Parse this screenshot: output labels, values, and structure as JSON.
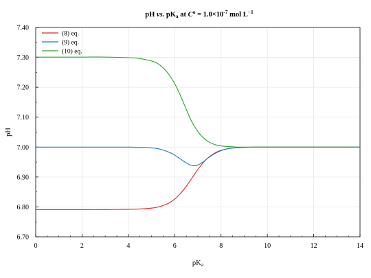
{
  "chart_data": {
    "type": "line",
    "title": {
      "pre": "pH ",
      "vs": "vs.",
      "mid": " pK",
      "mid_sub": "a",
      "at": " at ",
      "c_sym": "C",
      "c_sup": "o",
      "eq": " = 1.0×10",
      "exp": "-7",
      "unit": " mol L",
      "unit_exp": "−1"
    },
    "xlabel": {
      "main": "pK",
      "sub": "a"
    },
    "ylabel": "pH",
    "xlim": [
      0,
      14
    ],
    "ylim": [
      6.7,
      7.4
    ],
    "x_ticks": [
      "0",
      "2",
      "4",
      "6",
      "8",
      "10",
      "12",
      "14"
    ],
    "y_ticks": [
      "6.70",
      "6.80",
      "6.90",
      "7.00",
      "7.10",
      "7.20",
      "7.30",
      "7.40"
    ],
    "grid": true,
    "legend_position": "top-left",
    "x": [
      0,
      1,
      2,
      3,
      4,
      4.5,
      5,
      5.25,
      5.5,
      5.75,
      6,
      6.25,
      6.5,
      6.75,
      7,
      7.25,
      7.5,
      7.75,
      8,
      8.25,
      8.5,
      8.75,
      9,
      9.5,
      10,
      11,
      12,
      13,
      14
    ],
    "series": [
      {
        "name": "(8) eq.",
        "color": "#d62728",
        "values": [
          6.791,
          6.791,
          6.791,
          6.791,
          6.792,
          6.793,
          6.796,
          6.799,
          6.805,
          6.813,
          6.826,
          6.845,
          6.869,
          6.897,
          6.925,
          6.95,
          6.968,
          6.981,
          6.989,
          6.994,
          6.997,
          6.998,
          6.999,
          7.0,
          7.0,
          7.0,
          7.0,
          7.0,
          7.0
        ]
      },
      {
        "name": "(9) eq.",
        "color": "#1f77b4",
        "values": [
          7.0,
          7.0,
          7.0,
          7.0,
          7.0,
          6.999,
          6.997,
          6.995,
          6.99,
          6.983,
          6.973,
          6.96,
          6.947,
          6.938,
          6.94,
          6.952,
          6.967,
          6.979,
          6.988,
          6.994,
          6.997,
          6.998,
          6.999,
          7.0,
          7.0,
          7.0,
          7.0,
          7.0,
          7.0
        ]
      },
      {
        "name": "(10) eq.",
        "color": "#2ca02c",
        "values": [
          7.301,
          7.301,
          7.301,
          7.301,
          7.299,
          7.296,
          7.288,
          7.28,
          7.265,
          7.243,
          7.212,
          7.172,
          7.126,
          7.083,
          7.052,
          7.03,
          7.016,
          7.008,
          7.004,
          7.002,
          7.001,
          7.0,
          7.0,
          7.0,
          7.0,
          7.0,
          7.0,
          7.0,
          7.0
        ]
      }
    ]
  }
}
